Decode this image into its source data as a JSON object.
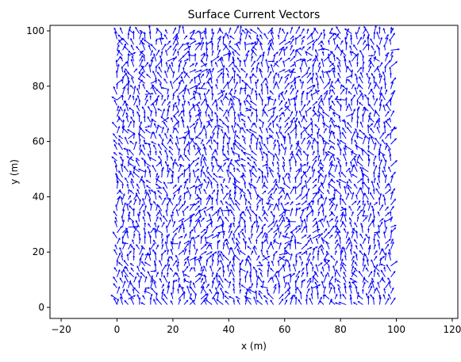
{
  "chart_data": {
    "type": "quiver",
    "title": "Surface Current Vectors",
    "xlabel": "x (m)",
    "ylabel": "y (m)",
    "xlim": [
      -24,
      122
    ],
    "ylim": [
      -4,
      102
    ],
    "xticks": [
      -20,
      0,
      20,
      40,
      60,
      80,
      100,
      120
    ],
    "yticks": [
      0,
      20,
      40,
      60,
      80,
      100
    ],
    "grid": false,
    "legend": "none",
    "field": {
      "x_range": [
        0,
        98
      ],
      "y_range": [
        1,
        99
      ],
      "grid_step": 2,
      "count_per_axis": 50,
      "description_note": ""
    },
    "sample_vectors": [
      {
        "x": 0,
        "y": 1,
        "u": 0.2,
        "v": 0.9
      },
      {
        "x": 0,
        "y": 75,
        "u": -0.8,
        "v": 0.5
      },
      {
        "x": 20,
        "y": 50,
        "u": 0.1,
        "v": 1.0
      },
      {
        "x": 40,
        "y": 90,
        "u": 0.3,
        "v": 0.9
      },
      {
        "x": 60,
        "y": 60,
        "u": -0.2,
        "v": 0.9
      },
      {
        "x": 80,
        "y": 20,
        "u": 0.4,
        "v": 0.8
      },
      {
        "x": 98,
        "y": 64,
        "u": 0.9,
        "v": 0.4
      },
      {
        "x": 98,
        "y": 99,
        "u": 0.1,
        "v": 1.0
      }
    ]
  },
  "colors": {
    "arrows": "#0000ff",
    "axes": "#000000",
    "background": "#ffffff"
  }
}
